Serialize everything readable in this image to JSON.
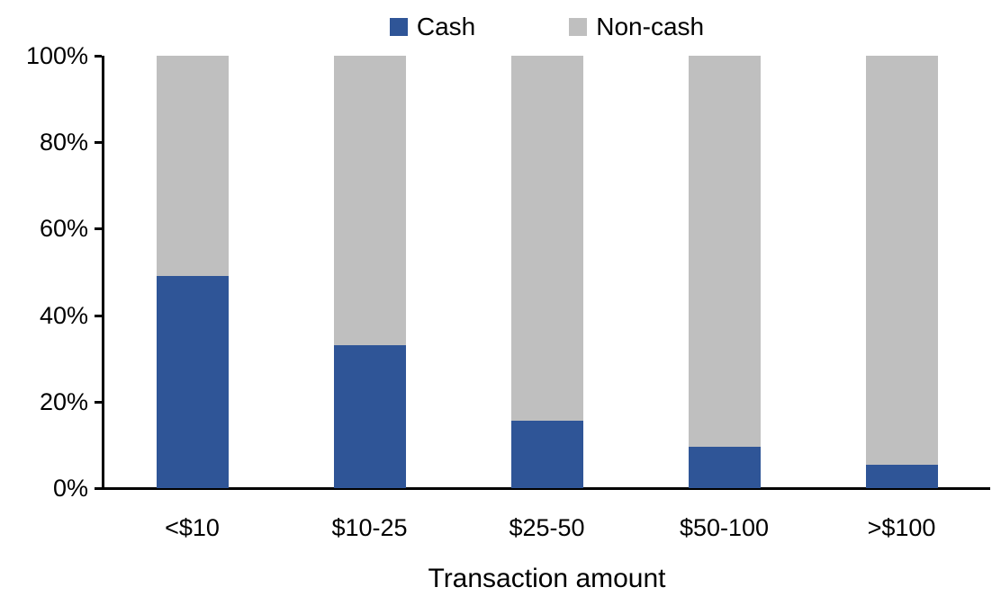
{
  "chart_data": {
    "type": "bar",
    "variant": "stacked-column-100pct",
    "title": "",
    "categories": [
      "<$10",
      "$10-25",
      "$25-50",
      "$50-100",
      ">$100"
    ],
    "series": [
      {
        "name": "Cash",
        "color": "#2F5597",
        "values": [
          49,
          33,
          15.5,
          9.5,
          5.5
        ]
      },
      {
        "name": "Non-cash",
        "color": "#BFBFBF",
        "values": [
          51,
          67,
          84.5,
          90.5,
          94.5
        ]
      }
    ],
    "xlabel": "Transaction amount",
    "ylabel": "",
    "ylim": [
      0,
      100
    ],
    "yticks": [
      {
        "value": 0,
        "label": "0%"
      },
      {
        "value": 20,
        "label": "20%"
      },
      {
        "value": 40,
        "label": "40%"
      },
      {
        "value": 60,
        "label": "60%"
      },
      {
        "value": 80,
        "label": "80%"
      },
      {
        "value": 100,
        "label": "100%"
      }
    ],
    "grid": false,
    "legend_position": "top",
    "axis_color": "#000000",
    "text_color": "#000000",
    "background_color": "#FFFFFF"
  }
}
